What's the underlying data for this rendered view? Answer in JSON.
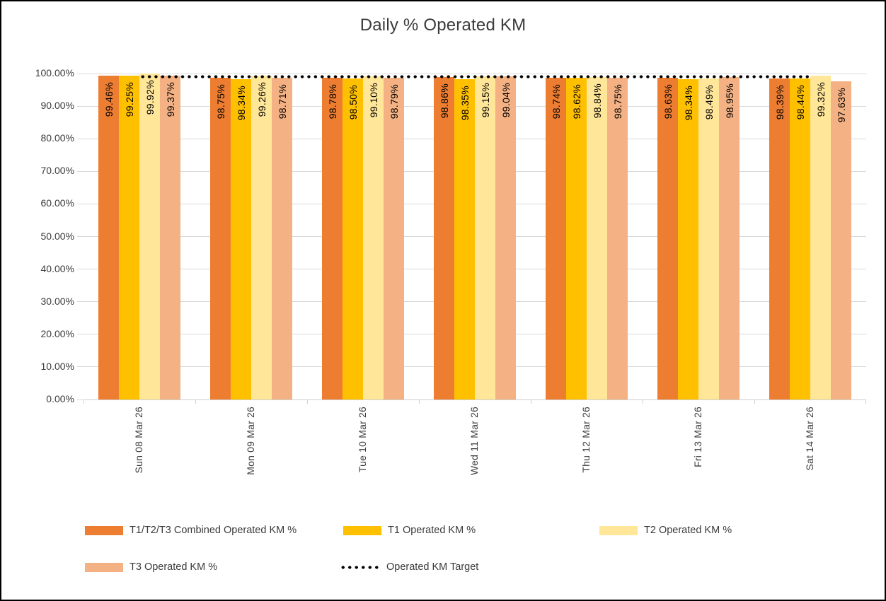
{
  "chart_data": {
    "type": "bar",
    "title": "Daily % Operated KM",
    "categories": [
      "Sun 08 Mar 26",
      "Mon 09 Mar 26",
      "Tue 10 Mar 26",
      "Wed 11 Mar 26",
      "Thu 12 Mar 26",
      "Fri 13 Mar 26",
      "Sat 14 Mar 26"
    ],
    "series": [
      {
        "name": "T1/T2/T3 Combined Operated KM %",
        "color": "#ED7D31",
        "values": [
          99.46,
          98.75,
          98.78,
          98.86,
          98.74,
          98.63,
          98.39
        ]
      },
      {
        "name": "T1 Operated KM %",
        "color": "#FFC000",
        "values": [
          99.25,
          98.34,
          98.5,
          98.35,
          98.62,
          98.34,
          98.44
        ]
      },
      {
        "name": "T2 Operated KM %",
        "color": "#FFE699",
        "values": [
          99.92,
          99.26,
          99.1,
          99.15,
          98.84,
          98.49,
          99.32
        ]
      },
      {
        "name": "T3 Operated KM %",
        "color": "#F4B183",
        "values": [
          99.37,
          98.71,
          98.79,
          99.04,
          98.75,
          98.95,
          97.63
        ]
      }
    ],
    "target_line": {
      "name": "Operated KM Target",
      "value": 99,
      "color": "#000000",
      "style": "dotted"
    },
    "data_label_suffix": "%",
    "ylim": [
      0,
      100
    ],
    "y_ticks": [
      {
        "value": 0,
        "label": "0.00%"
      },
      {
        "value": 10,
        "label": "10.00%"
      },
      {
        "value": 20,
        "label": "20.00%"
      },
      {
        "value": 30,
        "label": "30.00%"
      },
      {
        "value": 40,
        "label": "40.00%"
      },
      {
        "value": 50,
        "label": "50.00%"
      },
      {
        "value": 60,
        "label": "60.00%"
      },
      {
        "value": 70,
        "label": "70.00%"
      },
      {
        "value": 80,
        "label": "80.00%"
      },
      {
        "value": 90,
        "label": "90.00%"
      },
      {
        "value": 100,
        "label": "100.00%"
      }
    ],
    "grid": true,
    "legend_position": "bottom"
  },
  "colors": {
    "gridline": "#D9D9D9",
    "axis": "#CFCFCF",
    "title_text": "#3B3B3B",
    "label_text": "#000000"
  }
}
